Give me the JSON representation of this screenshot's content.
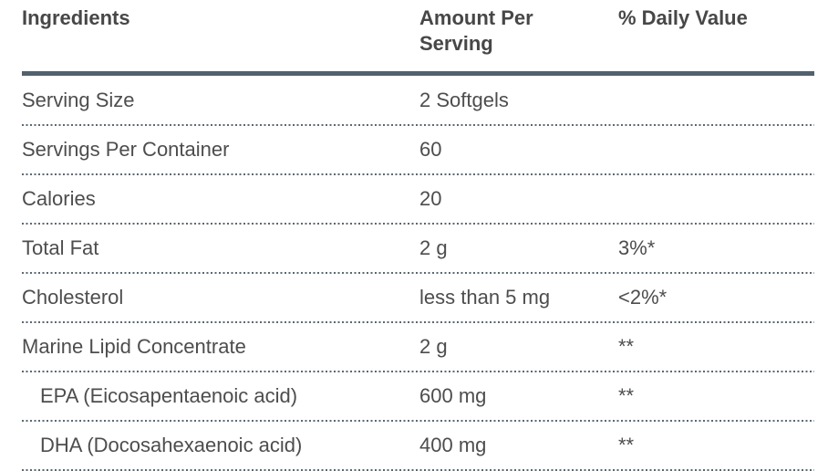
{
  "table": {
    "headers": {
      "ingredients": "Ingredients",
      "amount": "Amount Per Serving",
      "daily_value": "% Daily Value"
    },
    "rows": [
      {
        "ingredient": "Serving Size",
        "amount": "2 Softgels",
        "daily_value": "",
        "indent": false
      },
      {
        "ingredient": "Servings Per Container",
        "amount": "60",
        "daily_value": "",
        "indent": false
      },
      {
        "ingredient": "Calories",
        "amount": "20",
        "daily_value": "",
        "indent": false
      },
      {
        "ingredient": "Total Fat",
        "amount": "2 g",
        "daily_value": "3%*",
        "indent": false
      },
      {
        "ingredient": "Cholesterol",
        "amount": "less than 5 mg",
        "daily_value": "<2%*",
        "indent": false
      },
      {
        "ingredient": "Marine Lipid Concentrate",
        "amount": "2 g",
        "daily_value": "**",
        "indent": false
      },
      {
        "ingredient": "EPA (Eicosapentaenoic acid)",
        "amount": "600 mg",
        "daily_value": "**",
        "indent": true
      },
      {
        "ingredient": "DHA (Docosahexaenoic acid)",
        "amount": "400 mg",
        "daily_value": "**",
        "indent": true
      }
    ],
    "colors": {
      "header_rule": "#52616d",
      "dotted_rule": "#5a6872",
      "text": "#4d4d4d",
      "header_text": "#474747",
      "background": "#ffffff"
    }
  }
}
